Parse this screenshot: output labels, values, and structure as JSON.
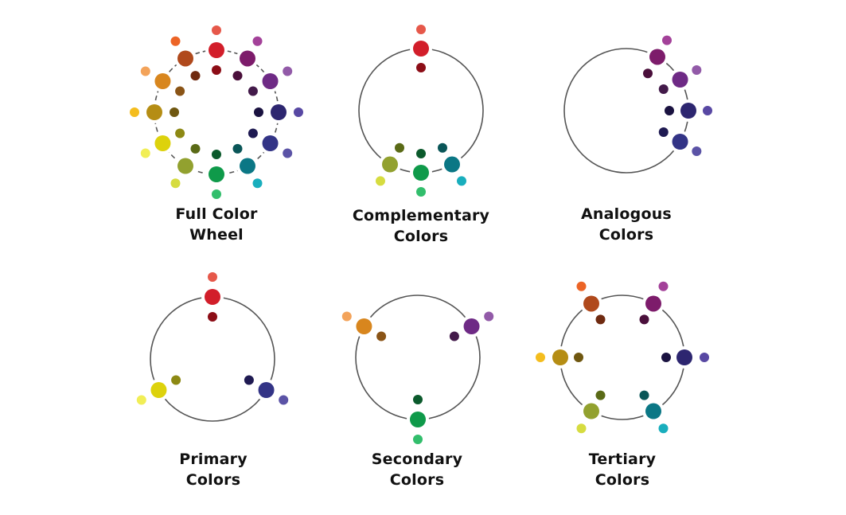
{
  "palette": {
    "red": {
      "base": "#d21e2a",
      "tint": "#e6584a",
      "shade": "#8c0d16"
    },
    "red-orange": {
      "base": "#b0491c",
      "tint": "#ec6426",
      "shade": "#6f2a10"
    },
    "orange": {
      "base": "#d8861e",
      "tint": "#f3a35a",
      "shade": "#8a5416"
    },
    "yellow-orange": {
      "base": "#b58d14",
      "tint": "#f4bd1e",
      "shade": "#6f5710"
    },
    "yellow": {
      "base": "#ddd20c",
      "tint": "#f1ee56",
      "shade": "#8d8914"
    },
    "yellow-green": {
      "base": "#92a12f",
      "tint": "#d6dc40",
      "shade": "#5a6a16"
    },
    "green": {
      "base": "#0f9a4a",
      "tint": "#32be6c",
      "shade": "#0b5a2c"
    },
    "blue-green": {
      "base": "#0b7785",
      "tint": "#19aebd",
      "shade": "#0a5658"
    },
    "blue": {
      "base": "#333486",
      "tint": "#5b53a6",
      "shade": "#1f1a52"
    },
    "blue-violet": {
      "base": "#2d2670",
      "tint": "#5848a3",
      "shade": "#1a1240"
    },
    "violet": {
      "base": "#6e2a85",
      "tint": "#925aa8",
      "shade": "#431a4a"
    },
    "red-violet": {
      "base": "#7d1c6b",
      "tint": "#a34199",
      "shade": "#4a0f3b"
    }
  },
  "panels": [
    {
      "id": "full-color-wheel",
      "title_lines": [
        "Full Color",
        "Wheel"
      ],
      "show_ring": false,
      "colors": [
        "red",
        "red-orange",
        "orange",
        "yellow-orange",
        "yellow",
        "yellow-green",
        "green",
        "blue-green",
        "blue",
        "blue-violet",
        "violet",
        "red-violet"
      ]
    },
    {
      "id": "complementary-colors",
      "title_lines": [
        "Complementary",
        "Colors"
      ],
      "show_ring": true,
      "colors": [
        "red",
        "yellow-green",
        "green",
        "blue-green"
      ]
    },
    {
      "id": "analogous-colors",
      "title_lines": [
        "Analogous",
        "Colors"
      ],
      "show_ring": true,
      "colors": [
        "red-violet",
        "violet",
        "blue-violet",
        "blue"
      ]
    },
    {
      "id": "primary-colors",
      "title_lines": [
        "Primary",
        "Colors"
      ],
      "show_ring": true,
      "colors": [
        "red",
        "yellow",
        "blue"
      ]
    },
    {
      "id": "secondary-colors",
      "title_lines": [
        "Secondary",
        "Colors"
      ],
      "show_ring": true,
      "colors": [
        "orange",
        "green",
        "violet"
      ]
    },
    {
      "id": "tertiary-colors",
      "title_lines": [
        "Tertiary",
        "Colors"
      ],
      "show_ring": true,
      "colors": [
        "red-orange",
        "yellow-orange",
        "yellow-green",
        "blue-green",
        "blue-violet",
        "red-violet"
      ]
    }
  ]
}
